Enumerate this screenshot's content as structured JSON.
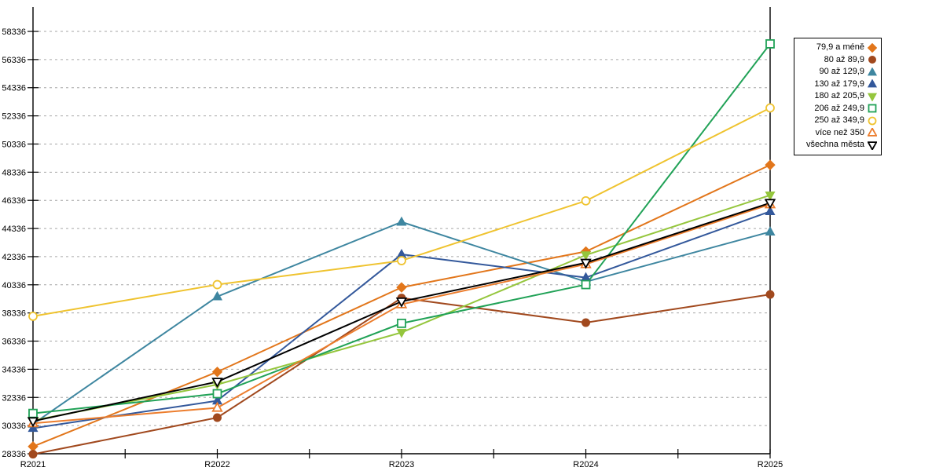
{
  "page": {
    "background": "#ffffff",
    "axis_color": "#000000",
    "grid_color": "#a6a6a6",
    "label_color": "#000000"
  },
  "chart_data": {
    "type": "line",
    "title": "",
    "categories": [
      "R2021",
      "R2022",
      "R2023",
      "R2024",
      "R2025"
    ],
    "y_ticks": [
      28336,
      30336,
      32336,
      34336,
      36336,
      38336,
      40336,
      42336,
      44336,
      46336,
      48336,
      50336,
      52336,
      54336,
      56336,
      58336
    ],
    "ylim": [
      28336,
      60050
    ],
    "grid": "horizontal-dashed",
    "legend_position": "right",
    "series": [
      {
        "name": "79,9 a méně",
        "color": "#e2761b",
        "marker": "diamond",
        "fill": "filled",
        "values": [
          28850,
          34150,
          40150,
          42700,
          48850
        ]
      },
      {
        "name": "80 až 89,9",
        "color": "#a1491e",
        "marker": "circle",
        "fill": "filled",
        "values": [
          28300,
          30900,
          39400,
          37650,
          39650
        ]
      },
      {
        "name": "90 až 129,9",
        "color": "#3e86a0",
        "marker": "triangle-up",
        "fill": "filled",
        "values": [
          30450,
          39500,
          44800,
          40550,
          44100
        ]
      },
      {
        "name": "130 až 179,9",
        "color": "#33589b",
        "marker": "triangle-up",
        "fill": "filled",
        "values": [
          30150,
          32100,
          42500,
          40850,
          45550
        ]
      },
      {
        "name": "180 až 205,9",
        "color": "#95c63d",
        "marker": "triangle-down",
        "fill": "filled",
        "values": [
          30700,
          33250,
          36950,
          42450,
          46700
        ]
      },
      {
        "name": "206 až 249,9",
        "color": "#21a257",
        "marker": "square",
        "fill": "open",
        "values": [
          31200,
          32600,
          37600,
          40350,
          57450
        ]
      },
      {
        "name": "250 až 349,9",
        "color": "#efc32f",
        "marker": "circle",
        "fill": "open",
        "values": [
          38100,
          40350,
          42050,
          46300,
          52900
        ]
      },
      {
        "name": "více než 350",
        "color": "#ec7d2d",
        "marker": "triangle-up",
        "fill": "open",
        "values": [
          30500,
          31600,
          38950,
          41800,
          46050
        ]
      },
      {
        "name": "všechna města",
        "color": "#000000",
        "marker": "triangle-down",
        "fill": "open",
        "values": [
          30650,
          33450,
          39150,
          41900,
          46150
        ]
      }
    ]
  }
}
